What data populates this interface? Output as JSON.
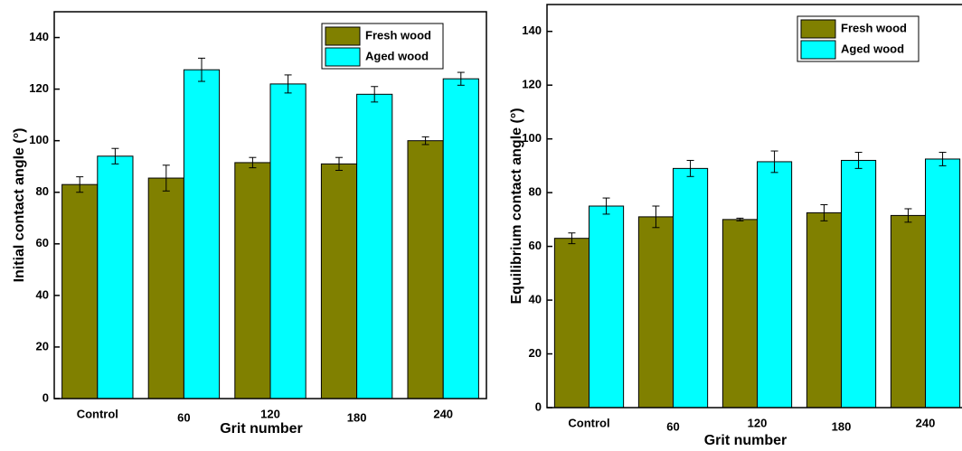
{
  "chart_data": [
    {
      "type": "bar",
      "y_label": "Initial contact angle (°)",
      "x_label": "Grit number",
      "categories": [
        "Control",
        "60",
        "120",
        "180",
        "240"
      ],
      "series": [
        {
          "name": "Fresh wood",
          "color": "#808000",
          "values": [
            83,
            85.5,
            91.5,
            91,
            100
          ],
          "errors": [
            3,
            5,
            2,
            2.5,
            1.5
          ]
        },
        {
          "name": "Aged wood",
          "color": "#00ffff",
          "values": [
            94,
            127.5,
            122,
            118,
            124
          ],
          "errors": [
            3,
            4.5,
            3.5,
            3,
            2.5
          ]
        }
      ],
      "ylim": [
        0,
        150
      ],
      "yticks": [
        0,
        20,
        40,
        60,
        80,
        100,
        120,
        140
      ],
      "legend": "upper right"
    },
    {
      "type": "bar",
      "y_label": "Equilibrium contact angle (°)",
      "x_label": "Grit number",
      "categories": [
        "Control",
        "60",
        "120",
        "180",
        "240"
      ],
      "series": [
        {
          "name": "Fresh wood",
          "color": "#808000",
          "values": [
            63,
            71,
            70,
            72.5,
            71.5
          ],
          "errors": [
            2,
            4,
            0.5,
            3,
            2.5
          ]
        },
        {
          "name": "Aged wood",
          "color": "#00ffff",
          "values": [
            75,
            89,
            91.5,
            92,
            92.5
          ],
          "errors": [
            3,
            3,
            4,
            3,
            2.5
          ]
        }
      ],
      "ylim": [
        0,
        150
      ],
      "yticks": [
        0,
        20,
        40,
        60,
        80,
        100,
        120,
        140
      ],
      "legend": "upper right"
    }
  ]
}
